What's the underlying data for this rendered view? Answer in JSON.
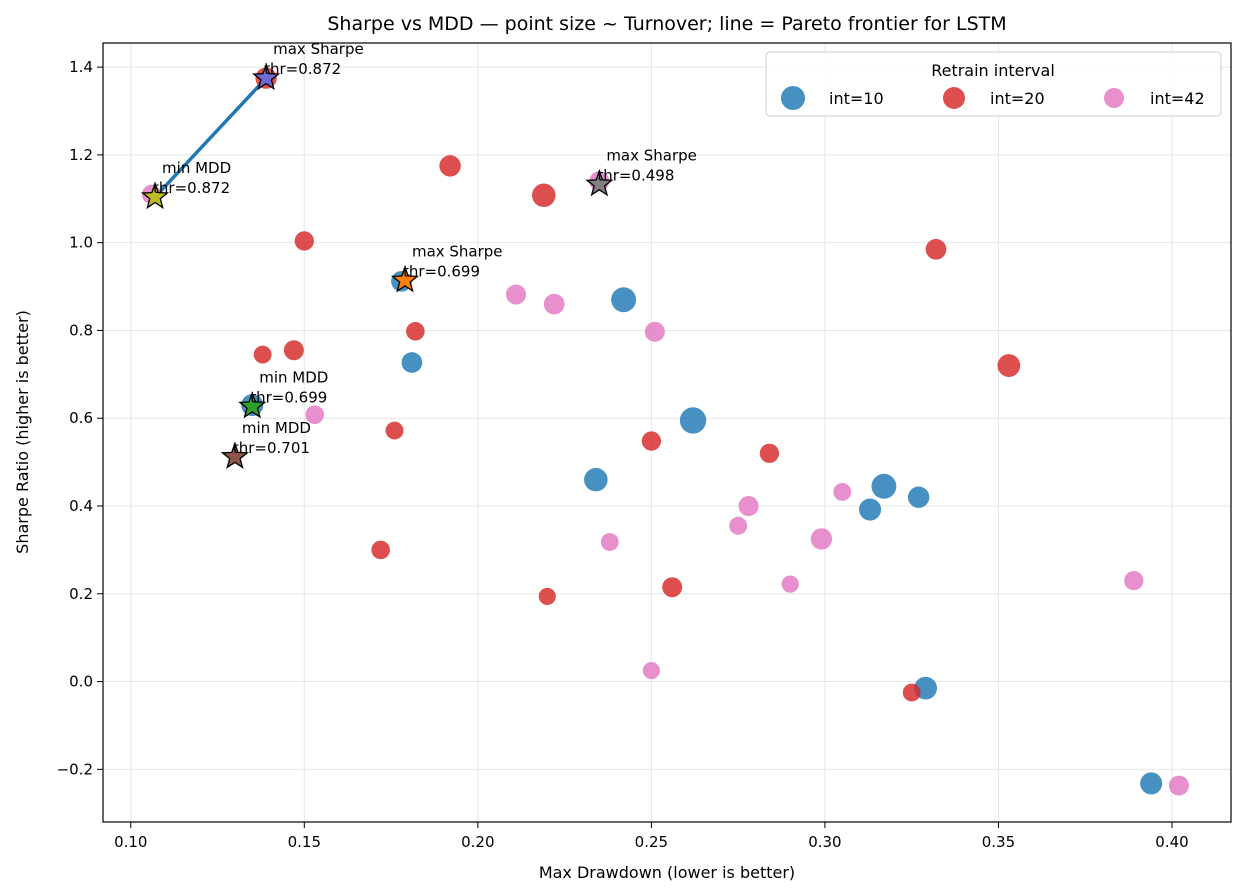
{
  "chart_data": {
    "type": "scatter",
    "title": "Sharpe vs MDD — point size ~ Turnover; line = Pareto frontier for LSTM",
    "xlabel": "Max Drawdown (lower is better)",
    "ylabel": "Sharpe Ratio (higher is better)",
    "xlim": [
      0.092,
      0.417
    ],
    "ylim": [
      -0.32,
      1.455
    ],
    "x_ticks": [
      0.1,
      0.15,
      0.2,
      0.25,
      0.3,
      0.35,
      0.4
    ],
    "x_tick_labels": [
      "0.10",
      "0.15",
      "0.20",
      "0.25",
      "0.30",
      "0.35",
      "0.40"
    ],
    "y_ticks": [
      -0.2,
      0.0,
      0.2,
      0.4,
      0.6,
      0.8,
      1.0,
      1.2,
      1.4
    ],
    "y_tick_labels": [
      "−0.2",
      "0.0",
      "0.2",
      "0.4",
      "0.6",
      "0.8",
      "1.0",
      "1.2",
      "1.4"
    ],
    "grid": true,
    "legend": {
      "title": "Retrain interval",
      "placement": "top-right",
      "entries": [
        "int=10",
        "int=20",
        "int=42"
      ]
    },
    "colors": {
      "int=10": "#1f77b4",
      "int=20": "#d62728",
      "int=42": "#e377c2",
      "frontier": "#1f77b4"
    },
    "point_size_note": "size ~ Turnover (relative 0–1)",
    "series": [
      {
        "name": "int=10",
        "points": [
          {
            "x": 0.178,
            "y": 0.912,
            "size": 0.55
          },
          {
            "x": 0.135,
            "y": 0.63,
            "size": 0.65
          },
          {
            "x": 0.181,
            "y": 0.727,
            "size": 0.55
          },
          {
            "x": 0.242,
            "y": 0.87,
            "size": 0.85
          },
          {
            "x": 0.262,
            "y": 0.595,
            "size": 0.95
          },
          {
            "x": 0.234,
            "y": 0.46,
            "size": 0.75
          },
          {
            "x": 0.317,
            "y": 0.445,
            "size": 0.85
          },
          {
            "x": 0.313,
            "y": 0.392,
            "size": 0.65
          },
          {
            "x": 0.327,
            "y": 0.42,
            "size": 0.6
          },
          {
            "x": 0.329,
            "y": -0.015,
            "size": 0.7
          },
          {
            "x": 0.394,
            "y": -0.232,
            "size": 0.65
          }
        ]
      },
      {
        "name": "int=20",
        "points": [
          {
            "x": 0.139,
            "y": 1.375,
            "size": 0.6
          },
          {
            "x": 0.192,
            "y": 1.175,
            "size": 0.6
          },
          {
            "x": 0.219,
            "y": 1.108,
            "size": 0.75
          },
          {
            "x": 0.15,
            "y": 1.004,
            "size": 0.45
          },
          {
            "x": 0.332,
            "y": 0.985,
            "size": 0.55
          },
          {
            "x": 0.182,
            "y": 0.798,
            "size": 0.4
          },
          {
            "x": 0.138,
            "y": 0.745,
            "size": 0.35
          },
          {
            "x": 0.147,
            "y": 0.755,
            "size": 0.5
          },
          {
            "x": 0.353,
            "y": 0.72,
            "size": 0.7
          },
          {
            "x": 0.176,
            "y": 0.572,
            "size": 0.35
          },
          {
            "x": 0.25,
            "y": 0.548,
            "size": 0.45
          },
          {
            "x": 0.284,
            "y": 0.52,
            "size": 0.45
          },
          {
            "x": 0.172,
            "y": 0.3,
            "size": 0.4
          },
          {
            "x": 0.256,
            "y": 0.215,
            "size": 0.5
          },
          {
            "x": 0.22,
            "y": 0.194,
            "size": 0.3
          },
          {
            "x": 0.325,
            "y": -0.025,
            "size": 0.35
          }
        ]
      },
      {
        "name": "int=42",
        "points": [
          {
            "x": 0.106,
            "y": 1.11,
            "size": 0.45
          },
          {
            "x": 0.235,
            "y": 1.14,
            "size": 0.5
          },
          {
            "x": 0.211,
            "y": 0.882,
            "size": 0.5
          },
          {
            "x": 0.222,
            "y": 0.86,
            "size": 0.55
          },
          {
            "x": 0.251,
            "y": 0.797,
            "size": 0.5
          },
          {
            "x": 0.153,
            "y": 0.608,
            "size": 0.4
          },
          {
            "x": 0.278,
            "y": 0.4,
            "size": 0.5
          },
          {
            "x": 0.305,
            "y": 0.432,
            "size": 0.35
          },
          {
            "x": 0.275,
            "y": 0.355,
            "size": 0.35
          },
          {
            "x": 0.238,
            "y": 0.318,
            "size": 0.35
          },
          {
            "x": 0.299,
            "y": 0.325,
            "size": 0.6
          },
          {
            "x": 0.29,
            "y": 0.222,
            "size": 0.3
          },
          {
            "x": 0.389,
            "y": 0.23,
            "size": 0.45
          },
          {
            "x": 0.25,
            "y": 0.025,
            "size": 0.3
          },
          {
            "x": 0.402,
            "y": -0.237,
            "size": 0.5
          }
        ]
      }
    ],
    "frontier": {
      "color": "#1f77b4",
      "points": [
        {
          "x": 0.107,
          "y": 1.104
        },
        {
          "x": 0.139,
          "y": 1.375
        }
      ]
    },
    "stars": [
      {
        "x": 0.139,
        "y": 1.375,
        "color": "#6f6bd6",
        "label_line1": "max Sharpe",
        "label_line2": "thr=0.872"
      },
      {
        "x": 0.107,
        "y": 1.104,
        "color": "#bcbd22",
        "label_line1": "min MDD",
        "label_line2": "thr=0.872"
      },
      {
        "x": 0.235,
        "y": 1.133,
        "color": "#7f7f7f",
        "label_line1": "max Sharpe",
        "label_line2": "thr=0.498"
      },
      {
        "x": 0.179,
        "y": 0.914,
        "color": "#ff7f0e",
        "label_line1": "max Sharpe",
        "label_line2": "thr=0.699"
      },
      {
        "x": 0.135,
        "y": 0.627,
        "color": "#2ca02c",
        "label_line1": "min MDD",
        "label_line2": "thr=0.699"
      },
      {
        "x": 0.13,
        "y": 0.512,
        "color": "#8c564b",
        "label_line1": "min MDD",
        "label_line2": "thr=0.701"
      }
    ]
  }
}
